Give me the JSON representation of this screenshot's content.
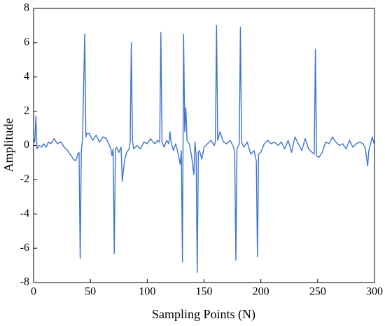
{
  "chart_data": {
    "type": "line",
    "xlabel": "Sampling Points (N)",
    "ylabel": "Amplitude",
    "xlim": [
      0,
      300
    ],
    "ylim": [
      -8,
      8
    ],
    "xticks": [
      0,
      50,
      100,
      150,
      200,
      250,
      300
    ],
    "yticks": [
      -8,
      -6,
      -4,
      -2,
      0,
      2,
      4,
      6,
      8
    ],
    "x": [
      0,
      1,
      2,
      3,
      5,
      7,
      9,
      11,
      13,
      15,
      18,
      21,
      24,
      27,
      30,
      33,
      35,
      37,
      39,
      40,
      41,
      42,
      43,
      45,
      46,
      47,
      49,
      52,
      55,
      58,
      61,
      64,
      66,
      68,
      69,
      70,
      71,
      72,
      73,
      75,
      77,
      78,
      80,
      82,
      84,
      85,
      86,
      87,
      88,
      91,
      94,
      97,
      100,
      103,
      105,
      107,
      109,
      111,
      112,
      113,
      115,
      117,
      119,
      120,
      121,
      123,
      125,
      127,
      129,
      130,
      131,
      132,
      133,
      134,
      135,
      137,
      139,
      141,
      142,
      143,
      144,
      145,
      146,
      148,
      150,
      153,
      156,
      159,
      160,
      161,
      162,
      164,
      167,
      170,
      173,
      176,
      177,
      178,
      179,
      181,
      182,
      183,
      185,
      188,
      191,
      194,
      196,
      197,
      198,
      200,
      203,
      206,
      209,
      212,
      215,
      218,
      221,
      224,
      227,
      230,
      233,
      236,
      239,
      242,
      245,
      247,
      248,
      249,
      251,
      254,
      257,
      260,
      263,
      266,
      269,
      272,
      275,
      278,
      281,
      284,
      287,
      290,
      292,
      294,
      295,
      297,
      298,
      300
    ],
    "series": [
      {
        "color": "#3d74cc",
        "values": [
          0.5,
          0.2,
          1.7,
          -0.2,
          0,
          -0.1,
          0.1,
          -0.1,
          0.2,
          0.1,
          0.4,
          0.1,
          0.2,
          -0.1,
          -0.3,
          -0.6,
          -0.8,
          -0.9,
          -0.5,
          -0.4,
          -6.6,
          -0.3,
          0.3,
          6.5,
          0.5,
          0.7,
          0.7,
          0.3,
          0.6,
          0.2,
          0.5,
          0.4,
          0.1,
          -0.2,
          -0.6,
          -0.2,
          -6.3,
          -0.3,
          -0.1,
          -0.4,
          -0.1,
          -2.1,
          -0.9,
          -0.4,
          -0.2,
          0.2,
          6.0,
          0.3,
          -0.2,
          0.0,
          -0.2,
          0.2,
          0.1,
          0.4,
          0.2,
          0.1,
          0.3,
          0.2,
          6.6,
          0.2,
          -0.1,
          0.3,
          0.1,
          0.8,
          0.2,
          -0.3,
          0.1,
          -0.4,
          -1.1,
          -0.3,
          -6.8,
          6.5,
          0.8,
          2.2,
          0.3,
          0.1,
          -0.6,
          -1.7,
          0.2,
          -0.5,
          -7.4,
          -0.4,
          -0.3,
          -0.8,
          -0.1,
          0.1,
          0.3,
          0.0,
          0.2,
          7.0,
          0.3,
          0.8,
          0.2,
          0.1,
          0.3,
          -0.1,
          -0.4,
          -6.7,
          -0.2,
          0.1,
          6.9,
          0.2,
          -0.1,
          0.2,
          -0.5,
          -0.3,
          -0.9,
          -6.5,
          -0.5,
          -0.4,
          0.1,
          0.3,
          0.1,
          0.2,
          0.0,
          0.2,
          -0.2,
          0.3,
          -0.4,
          0.5,
          0.1,
          -0.3,
          0.4,
          -0.2,
          -0.4,
          -0.5,
          5.6,
          -0.6,
          -0.7,
          -0.4,
          0.2,
          0.1,
          0.5,
          0.2,
          0.0,
          0.1,
          -0.2,
          0.3,
          -0.1,
          0.1,
          0.2,
          0.1,
          -0.2,
          -1.2,
          -0.3,
          0.2,
          0.5,
          0.0
        ]
      }
    ]
  }
}
